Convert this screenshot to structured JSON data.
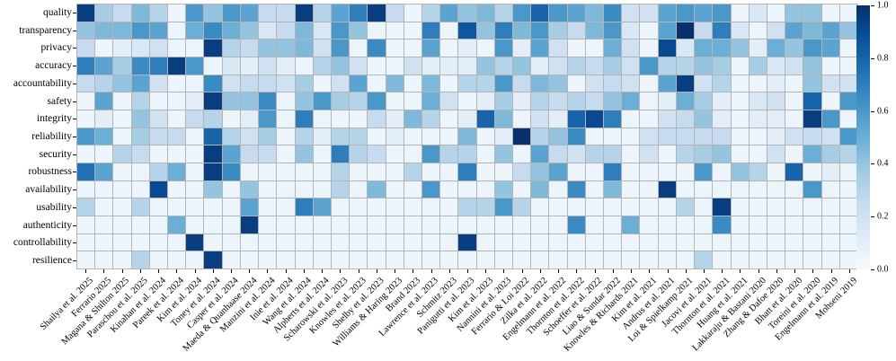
{
  "chart_data": {
    "type": "heatmap",
    "title": "",
    "xlabel": "",
    "ylabel": "",
    "rows": [
      "quality",
      "transparency",
      "privacy",
      "accuracy",
      "accountability",
      "safety",
      "integrity",
      "reliability",
      "security",
      "robustness",
      "availability",
      "usability",
      "authenticity",
      "controllability",
      "resilience"
    ],
    "columns": [
      "Shailya et al. 2025",
      "Ferrario 2025",
      "Magana & Shilton 2025",
      "Paraschou et al. 2025",
      "Kinahan et al. 2024",
      "Pareek et al. 2024",
      "Kim et al. 2024",
      "Toney et al. 2024",
      "Casper et al. 2024",
      "Maeda & Quanhaase 2024",
      "Manzini et al. 2024",
      "Inie et al. 2024",
      "Wang et al. 2024",
      "Alpherts et al. 2024",
      "Scharowski et al. 2023",
      "Knowles et al. 2023",
      "Shelby et al. 2023",
      "Williams & Haring 2023",
      "Brand 2023",
      "Lawrence et al. 2023",
      "Schmitz 2023",
      "Panigutti et al. 2023",
      "Kim et al. 2023",
      "Nannini et al. 2023",
      "Ferrario & Loi 2022",
      "Zilka et al. 2022",
      "Engelmann et al. 2022",
      "Thornton et al. 2022",
      "Schoeffer et al. 2022",
      "Liao & Sundar 2022",
      "Knowles & Richards 2021",
      "Kim et al. 2021",
      "Andrus et al. 2021",
      "Loi & Spielkamp 2021",
      "Jacovi et al. 2021",
      "Thornton et al. 2021",
      "Huang et al. 2021",
      "Lakkaraju & Bastani 2020",
      "Zhang & Dafoe 2020",
      "Bhatt et al. 2020",
      "Toreini et al. 2020",
      "Engelmann et al. 2019",
      "Mohseni 2019"
    ],
    "values": [
      [
        0.95,
        0.35,
        0.25,
        0.45,
        0.3,
        0.05,
        0.6,
        0.4,
        0.6,
        0.55,
        0.25,
        0.25,
        0.95,
        0.3,
        0.55,
        0.7,
        0.95,
        0.25,
        0.05,
        0.3,
        0.55,
        0.4,
        0.45,
        0.3,
        0.6,
        0.8,
        0.6,
        0.55,
        0.45,
        0.65,
        0.2,
        0.2,
        0.55,
        0.6,
        0.55,
        0.6,
        0.05,
        0.15,
        0.05,
        0.4,
        0.4,
        0.05,
        0.05
      ],
      [
        0.4,
        0.45,
        0.45,
        0.6,
        0.55,
        0.05,
        0.5,
        0.65,
        0.5,
        0.4,
        0.15,
        0.25,
        0.45,
        0.15,
        0.6,
        0.4,
        0.05,
        0.05,
        0.05,
        0.7,
        0.05,
        0.85,
        0.4,
        0.7,
        0.45,
        0.6,
        0.35,
        0.25,
        0.45,
        0.6,
        0.15,
        0.05,
        0.55,
        1.0,
        0.25,
        0.7,
        0.15,
        0.05,
        0.2,
        0.55,
        0.45,
        0.55,
        0.4
      ],
      [
        0.25,
        0.05,
        0.1,
        0.15,
        0.2,
        0.05,
        0.05,
        0.95,
        0.3,
        0.25,
        0.4,
        0.4,
        0.45,
        0.2,
        0.6,
        0.05,
        0.65,
        0.05,
        0.05,
        0.55,
        0.05,
        0.1,
        0.05,
        0.6,
        0.1,
        0.55,
        0.2,
        0.05,
        0.05,
        0.5,
        0.2,
        0.05,
        0.9,
        0.15,
        0.5,
        0.5,
        0.4,
        0.1,
        0.5,
        0.4,
        0.6,
        0.55,
        0.05
      ],
      [
        0.7,
        0.55,
        0.35,
        0.65,
        0.7,
        0.95,
        0.6,
        0.05,
        0.15,
        0.1,
        0.2,
        0.1,
        0.05,
        0.3,
        0.4,
        0.2,
        0.05,
        0.05,
        0.2,
        0.1,
        0.1,
        0.1,
        0.4,
        0.3,
        0.4,
        0.1,
        0.2,
        0.3,
        0.25,
        0.35,
        0.2,
        0.6,
        0.3,
        0.3,
        0.4,
        0.35,
        0.05,
        0.35,
        0.15,
        0.2,
        0.4,
        0.05,
        0.05
      ],
      [
        0.25,
        0.3,
        0.4,
        0.55,
        0.2,
        0.05,
        0.05,
        0.65,
        0.2,
        0.25,
        0.25,
        0.2,
        0.35,
        0.05,
        0.2,
        0.55,
        0.05,
        0.45,
        0.05,
        0.45,
        0.05,
        0.3,
        0.3,
        0.6,
        0.25,
        0.45,
        0.4,
        0.05,
        0.2,
        0.25,
        0.2,
        0.05,
        0.55,
        0.95,
        0.2,
        0.3,
        0.05,
        0.05,
        0.1,
        0.05,
        0.4,
        0.2,
        0.2
      ],
      [
        0.05,
        0.55,
        0.05,
        0.3,
        0.05,
        0.05,
        0.1,
        0.95,
        0.4,
        0.4,
        0.65,
        0.05,
        0.4,
        0.6,
        0.35,
        0.3,
        0.6,
        0.05,
        0.05,
        0.5,
        0.2,
        0.05,
        0.1,
        0.35,
        0.1,
        0.3,
        0.25,
        0.3,
        0.25,
        0.4,
        0.5,
        0.05,
        0.1,
        0.5,
        0.35,
        0.1,
        0.05,
        0.15,
        0.2,
        0.05,
        0.8,
        0.05,
        0.6
      ],
      [
        0.05,
        0.1,
        0.05,
        0.4,
        0.2,
        0.05,
        0.25,
        0.3,
        0.05,
        0.1,
        0.6,
        0.05,
        0.7,
        0.05,
        0.05,
        0.05,
        0.25,
        0.1,
        0.45,
        0.3,
        0.05,
        0.1,
        0.8,
        0.45,
        0.05,
        0.2,
        0.1,
        0.8,
        0.9,
        0.7,
        0.05,
        0.05,
        0.2,
        0.25,
        0.4,
        0.1,
        0.05,
        0.1,
        0.1,
        0.05,
        0.95,
        0.6,
        0.05
      ],
      [
        0.6,
        0.5,
        0.05,
        0.35,
        0.25,
        0.25,
        0.05,
        0.8,
        0.3,
        0.2,
        0.35,
        0.05,
        0.3,
        0.1,
        0.3,
        0.3,
        0.05,
        0.1,
        0.05,
        0.05,
        0.05,
        0.45,
        0.05,
        0.1,
        1.0,
        0.3,
        0.4,
        0.65,
        0.05,
        0.05,
        0.05,
        0.2,
        0.25,
        0.25,
        0.25,
        0.25,
        0.05,
        0.05,
        0.1,
        0.2,
        0.25,
        0.2,
        0.6
      ],
      [
        0.05,
        0.05,
        0.3,
        0.25,
        0.05,
        0.05,
        0.05,
        0.95,
        0.55,
        0.25,
        0.25,
        0.05,
        0.4,
        0.05,
        0.7,
        0.3,
        0.25,
        0.05,
        0.05,
        0.6,
        0.3,
        0.3,
        0.05,
        0.4,
        0.05,
        0.55,
        0.25,
        0.2,
        0.3,
        0.3,
        0.05,
        0.2,
        0.05,
        0.3,
        0.35,
        0.4,
        0.05,
        0.05,
        0.2,
        0.05,
        0.5,
        0.35,
        0.3
      ],
      [
        0.75,
        0.55,
        0.05,
        0.05,
        0.3,
        0.5,
        0.05,
        0.95,
        0.65,
        0.05,
        0.05,
        0.05,
        0.05,
        0.05,
        0.3,
        0.05,
        0.05,
        0.05,
        0.3,
        0.05,
        0.05,
        0.7,
        0.05,
        0.05,
        0.25,
        0.4,
        0.55,
        0.05,
        0.05,
        0.7,
        0.05,
        0.05,
        0.05,
        0.05,
        0.6,
        0.05,
        0.4,
        0.3,
        0.05,
        0.8,
        0.05,
        0.1,
        0.05
      ],
      [
        0.05,
        0.05,
        0.05,
        0.05,
        0.9,
        0.05,
        0.05,
        0.4,
        0.05,
        0.4,
        0.05,
        0.05,
        0.05,
        0.05,
        0.3,
        0.05,
        0.45,
        0.05,
        0.05,
        0.6,
        0.05,
        0.05,
        0.05,
        0.4,
        0.05,
        0.45,
        0.05,
        0.65,
        0.05,
        0.45,
        0.05,
        0.05,
        0.95,
        0.05,
        0.05,
        0.05,
        0.05,
        0.05,
        0.05,
        0.05,
        0.6,
        0.05,
        0.05
      ],
      [
        0.3,
        0.05,
        0.05,
        0.3,
        0.05,
        0.05,
        0.05,
        0.05,
        0.05,
        0.55,
        0.05,
        0.05,
        0.7,
        0.55,
        0.05,
        0.05,
        0.05,
        0.05,
        0.05,
        0.05,
        0.05,
        0.3,
        0.3,
        0.6,
        0.3,
        0.05,
        0.05,
        0.05,
        0.05,
        0.05,
        0.05,
        0.05,
        0.05,
        0.3,
        0.05,
        0.95,
        0.05,
        0.05,
        0.05,
        0.05,
        0.05,
        0.05,
        0.05
      ],
      [
        0.05,
        0.05,
        0.05,
        0.05,
        0.05,
        0.5,
        0.05,
        0.05,
        0.05,
        0.95,
        0.05,
        0.05,
        0.05,
        0.05,
        0.05,
        0.05,
        0.05,
        0.05,
        0.05,
        0.05,
        0.05,
        0.05,
        0.05,
        0.05,
        0.05,
        0.05,
        0.05,
        0.65,
        0.05,
        0.05,
        0.5,
        0.05,
        0.05,
        0.05,
        0.05,
        0.65,
        0.05,
        0.05,
        0.05,
        0.05,
        0.05,
        0.05,
        0.05
      ],
      [
        0.05,
        0.05,
        0.05,
        0.05,
        0.05,
        0.05,
        0.95,
        0.05,
        0.05,
        0.05,
        0.05,
        0.05,
        0.05,
        0.05,
        0.05,
        0.05,
        0.05,
        0.05,
        0.05,
        0.05,
        0.05,
        0.95,
        0.05,
        0.05,
        0.05,
        0.05,
        0.05,
        0.05,
        0.05,
        0.05,
        0.05,
        0.05,
        0.05,
        0.05,
        0.05,
        0.05,
        0.05,
        0.05,
        0.05,
        0.05,
        0.05,
        0.05,
        0.05
      ],
      [
        0.05,
        0.05,
        0.05,
        0.3,
        0.05,
        0.05,
        0.05,
        0.95,
        0.05,
        0.05,
        0.05,
        0.05,
        0.05,
        0.05,
        0.05,
        0.05,
        0.05,
        0.05,
        0.05,
        0.05,
        0.05,
        0.05,
        0.05,
        0.05,
        0.05,
        0.05,
        0.05,
        0.05,
        0.05,
        0.05,
        0.05,
        0.05,
        0.05,
        0.05,
        0.3,
        0.05,
        0.05,
        0.05,
        0.05,
        0.05,
        0.05,
        0.05,
        0.05
      ]
    ],
    "vmin": 0.0,
    "vmax": 1.0,
    "colormap": "Blues",
    "colorbar": {
      "tick_labels": [
        "0.0",
        "0.2",
        "0.4",
        "0.6",
        "0.8",
        "1.0"
      ],
      "tick_values": [
        0.0,
        0.2,
        0.4,
        0.6,
        0.8,
        1.0
      ]
    },
    "colors": {
      "cmap_low": "#f7fbff",
      "cmap_high": "#08306b",
      "grid_line": "#b4b4b4",
      "background": "#ffffff"
    },
    "layout": {
      "grid": "on",
      "x_tick_rotation_deg": 45,
      "legend_position": "right-colorbar"
    }
  }
}
